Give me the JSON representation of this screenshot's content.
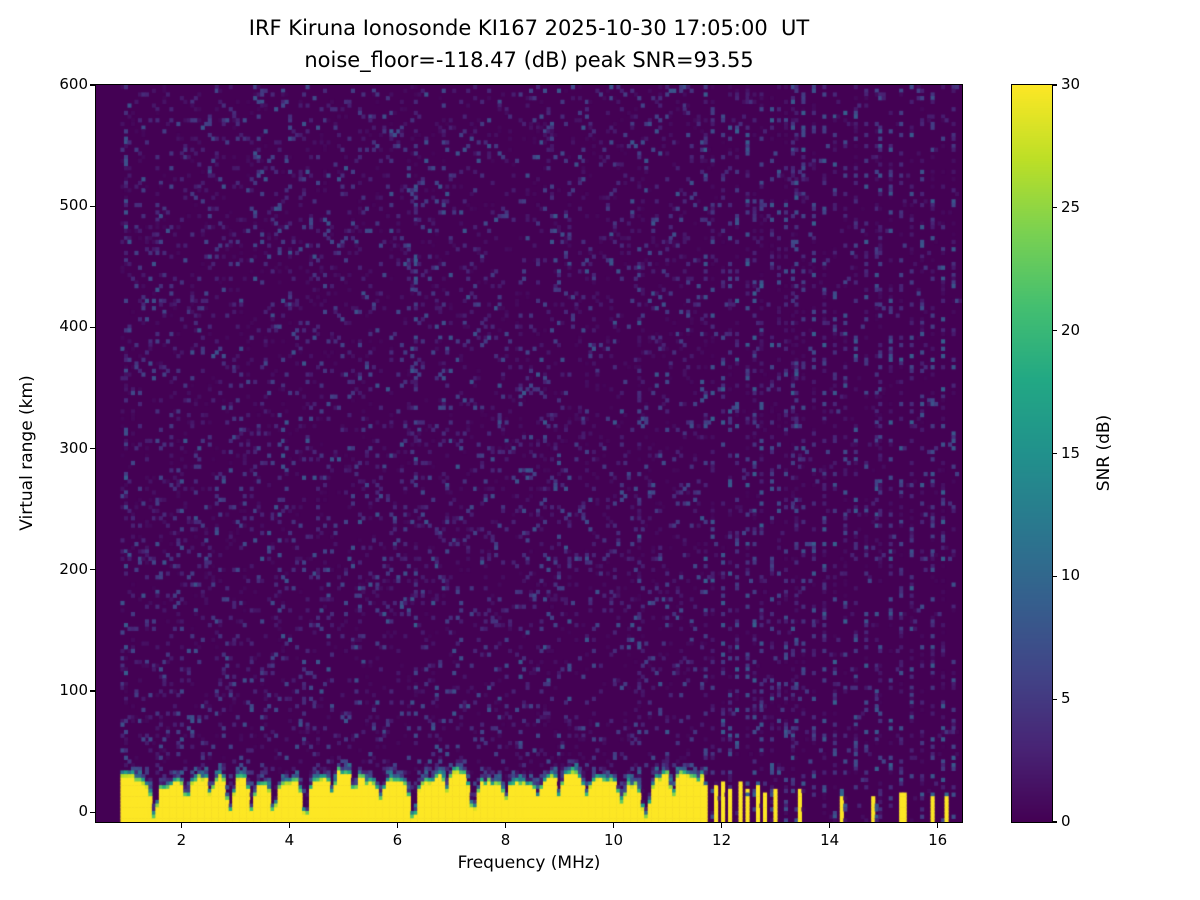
{
  "chart_data": {
    "type": "heatmap",
    "title_line1": "IRF Kiruna Ionosonde KI167 2025-10-30 17:05:00  UT",
    "title_line2": "noise_floor=-118.47 (dB) peak SNR=93.55",
    "station": "IRF Kiruna",
    "instrument": "Ionosonde KI167",
    "timestamp_ut": "2025-10-30 17:05:00",
    "noise_floor_db": -118.47,
    "peak_snr_db": 93.55,
    "xlabel": "Frequency (MHz)",
    "ylabel": "Virtual range (km)",
    "colorbar_label": "SNR (dB)",
    "colormap": "viridis",
    "x_ticks": [
      2,
      4,
      6,
      8,
      10,
      12,
      14,
      16
    ],
    "y_ticks": [
      0,
      100,
      200,
      300,
      400,
      500,
      600
    ],
    "colorbar_ticks": [
      0,
      5,
      10,
      15,
      20,
      25,
      30
    ],
    "xlim": [
      0.42,
      16.45
    ],
    "ylim": [
      -8,
      600
    ],
    "clim": [
      0,
      30
    ],
    "data_start_mhz": 0.88,
    "ground_echo": {
      "f_start_mhz": 0.88,
      "f_end_mhz": 11.65,
      "mean_top_km": 33,
      "snr_db": 30,
      "fringe_km": 9
    },
    "notches_mhz": [
      [
        1.5,
        30,
        0.05
      ],
      [
        2.1,
        20,
        0.05
      ],
      [
        2.55,
        15,
        0.04
      ],
      [
        2.9,
        30,
        0.06
      ],
      [
        3.3,
        25,
        0.05
      ],
      [
        3.7,
        22,
        0.05
      ],
      [
        4.3,
        30,
        0.06
      ],
      [
        4.8,
        14,
        0.04
      ],
      [
        5.2,
        16,
        0.04
      ],
      [
        5.7,
        12,
        0.04
      ],
      [
        6.3,
        32,
        0.06
      ],
      [
        6.9,
        14,
        0.04
      ],
      [
        7.4,
        28,
        0.06
      ],
      [
        8.0,
        16,
        0.05
      ],
      [
        8.6,
        13,
        0.04
      ],
      [
        9.0,
        20,
        0.05
      ],
      [
        9.5,
        14,
        0.04
      ],
      [
        10.15,
        18,
        0.05
      ],
      [
        10.6,
        30,
        0.06
      ],
      [
        11.1,
        16,
        0.05
      ]
    ],
    "sparse_stripes": [
      [
        11.72,
        0.035,
        26
      ],
      [
        11.88,
        0.03,
        22
      ],
      [
        12.02,
        0.035,
        25
      ],
      [
        12.18,
        0.03,
        20
      ],
      [
        12.33,
        0.035,
        24
      ],
      [
        12.5,
        0.03,
        18
      ],
      [
        12.65,
        0.035,
        22
      ],
      [
        12.82,
        0.03,
        16
      ],
      [
        12.98,
        0.035,
        20
      ],
      [
        13.45,
        0.04,
        18
      ],
      [
        14.2,
        0.04,
        16
      ],
      [
        14.78,
        0.04,
        14
      ],
      [
        15.35,
        0.04,
        15
      ],
      [
        15.9,
        0.04,
        14
      ],
      [
        16.15,
        0.03,
        12
      ]
    ],
    "interference_columns_mhz": [
      11.7,
      11.85,
      12.0,
      12.15,
      12.3,
      12.45,
      12.6,
      12.75,
      12.9,
      13.05,
      13.2,
      13.35,
      13.5,
      13.7,
      13.9,
      14.1,
      14.3,
      14.5,
      14.7,
      14.9,
      15.1,
      15.3,
      15.5,
      15.7,
      15.9,
      16.1,
      16.3
    ],
    "noisy_columns_mhz": [
      0.95,
      6.35,
      10.45
    ],
    "background_noise": {
      "speckle_probability": 0.22,
      "max_db": 8
    },
    "viridis_stops": [
      "#440154",
      "#482475",
      "#414487",
      "#355f8d",
      "#2a788e",
      "#21918c",
      "#22a884",
      "#44bf70",
      "#7ad151",
      "#bddf26",
      "#fde725"
    ]
  }
}
